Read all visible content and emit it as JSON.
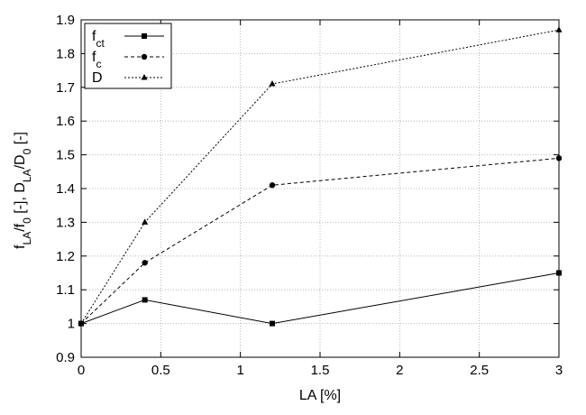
{
  "chart_data": {
    "type": "line",
    "title": "",
    "xlabel": "LA [%]",
    "ylabel": {
      "parts": [
        {
          "t": "f",
          "sub": false
        },
        {
          "t": "LA",
          "sub": true
        },
        {
          "t": "/f",
          "sub": false
        },
        {
          "t": "0",
          "sub": true
        },
        {
          "t": " [-], D",
          "sub": false
        },
        {
          "t": "LA",
          "sub": true
        },
        {
          "t": "/D",
          "sub": false
        },
        {
          "t": "0",
          "sub": true
        },
        {
          "t": " [-]",
          "sub": false
        }
      ]
    },
    "xlim": [
      0,
      3
    ],
    "ylim": [
      0.9,
      1.9
    ],
    "xticks": [
      0,
      0.5,
      1,
      1.5,
      2,
      2.5,
      3
    ],
    "xtick_labels": [
      "0",
      "0.5",
      "1",
      "1.5",
      "2",
      "2.5",
      "3"
    ],
    "yticks": [
      0.9,
      1.0,
      1.1,
      1.2,
      1.3,
      1.4,
      1.5,
      1.6,
      1.7,
      1.8,
      1.9
    ],
    "ytick_labels": [
      "0.9",
      "1",
      "1.1",
      "1.2",
      "1.3",
      "1.4",
      "1.5",
      "1.6",
      "1.7",
      "1.8",
      "1.9"
    ],
    "grid": true,
    "legend_position": "top-left",
    "series": [
      {
        "name": "f",
        "name_sub": "ct",
        "marker": "square",
        "dash": "solid",
        "color": "#000000",
        "x": [
          0,
          0.4,
          1.2,
          3
        ],
        "y": [
          1.0,
          1.07,
          1.0,
          1.15
        ]
      },
      {
        "name": "f",
        "name_sub": "c",
        "marker": "circle",
        "dash": "dashed",
        "color": "#000000",
        "x": [
          0,
          0.4,
          1.2,
          3
        ],
        "y": [
          1.0,
          1.18,
          1.41,
          1.49
        ]
      },
      {
        "name": "D",
        "name_sub": "",
        "marker": "triangle",
        "dash": "dotted",
        "color": "#000000",
        "x": [
          0,
          0.4,
          1.2,
          3
        ],
        "y": [
          1.0,
          1.3,
          1.71,
          1.87
        ]
      }
    ]
  }
}
